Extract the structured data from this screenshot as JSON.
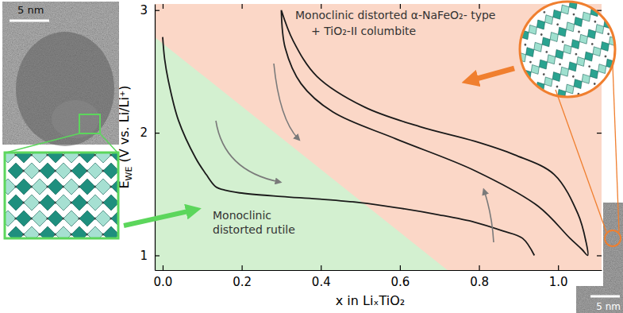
{
  "chart_data": {
    "type": "line",
    "xlabel": "x in LiₓTiO₂",
    "ylabel": {
      "main": "E",
      "sub": "WE",
      "rest": " (V vs. Li/Li⁺)"
    },
    "xlim": [
      -0.02,
      1.11
    ],
    "ylim": [
      0.88,
      3.05
    ],
    "xticks": [
      {
        "value": 0,
        "label": "0.0"
      },
      0.2,
      0.4,
      0.6,
      0.8,
      {
        "value": 1,
        "label": "1.0"
      }
    ],
    "yticks": [
      1,
      2,
      3
    ],
    "series": [
      {
        "color": "#1a1a1a",
        "x": [
          0,
          0.005,
          0.014,
          0.04,
          0.084,
          0.11,
          0.134,
          0.16,
          0.194,
          0.3,
          0.39,
          0.5,
          0.59,
          0.7,
          0.79,
          0.86,
          0.91,
          0.94
        ],
        "values": [
          2.78,
          2.6,
          2.43,
          2.1,
          1.79,
          1.66,
          1.56,
          1.53,
          1.51,
          1.48,
          1.46,
          1.43,
          1.39,
          1.33,
          1.27,
          1.2,
          1.14,
          1.0
        ]
      },
      {
        "color": "#1a1a1a",
        "x": [
          0.3,
          0.31,
          0.35,
          0.43,
          0.59,
          0.79,
          0.95,
          1.03,
          1.06,
          1.075,
          1.07,
          1.05,
          0.99,
          0.89,
          0.79,
          0.65,
          0.51,
          0.39,
          0.33,
          0.3
        ],
        "values": [
          3.0,
          2.69,
          2.4,
          2.17,
          1.95,
          1.69,
          1.4,
          1.14,
          1.05,
          1.0,
          1.12,
          1.34,
          1.66,
          1.82,
          1.93,
          2.05,
          2.21,
          2.46,
          2.75,
          3.0
        ]
      }
    ],
    "phase_boundary": {
      "x": [
        -0.02,
        0.72
      ],
      "y": [
        2.78,
        0.88
      ]
    },
    "regions": [
      {
        "label": [
          "Monoclinic",
          "distorted rutile"
        ],
        "color": "#d3f0d0"
      },
      {
        "label": [
          "Monoclinic distorted α-NaFeO₂- type",
          "+ TiO₂-II columbite"
        ],
        "color": "#fbd7c7"
      }
    ],
    "scale_bars": [
      "5 nm",
      "5 nm"
    ]
  }
}
